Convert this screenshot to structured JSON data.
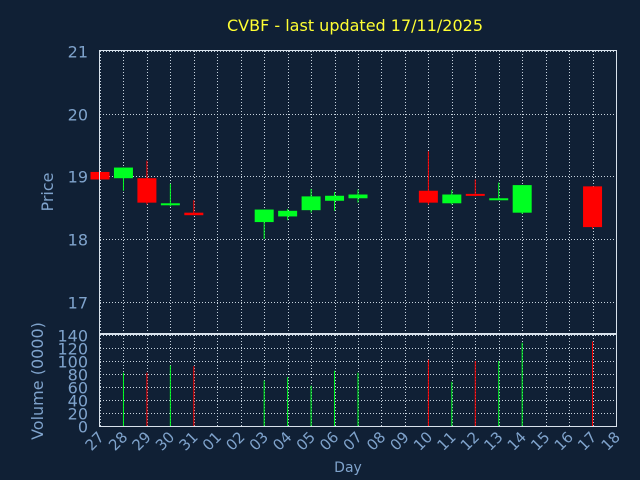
{
  "chart_data": {
    "type": "candlestick",
    "title": "CVBF - last updated 17/11/2025",
    "xlabel": "Day",
    "price_panel": {
      "ylabel": "Price",
      "ylim": [
        16.5,
        21
      ],
      "yticks": [
        17,
        18,
        19,
        20,
        21
      ]
    },
    "volume_panel": {
      "ylabel": "Volume (0000)",
      "ylim": [
        0,
        140
      ],
      "yticks": [
        0,
        20,
        40,
        60,
        80,
        100,
        120,
        140
      ]
    },
    "x_ticks": [
      "27",
      "28",
      "29",
      "30",
      "31",
      "01",
      "02",
      "03",
      "04",
      "05",
      "06",
      "07",
      "08",
      "09",
      "10",
      "11",
      "12",
      "13",
      "14",
      "15",
      "16",
      "17",
      "18"
    ],
    "grid": true,
    "candles": [
      {
        "day": "27",
        "open": 19.07,
        "high": 19.07,
        "low": 18.95,
        "close": 18.95,
        "volume": 0
      },
      {
        "day": "28",
        "open": 18.97,
        "high": 19.14,
        "low": 18.77,
        "close": 19.14,
        "volume": 82
      },
      {
        "day": "29",
        "open": 18.97,
        "high": 19.25,
        "low": 18.55,
        "close": 18.58,
        "volume": 82
      },
      {
        "day": "30",
        "open": 18.55,
        "high": 18.88,
        "low": 18.52,
        "close": 18.57,
        "volume": 93
      },
      {
        "day": "31",
        "open": 18.42,
        "high": 18.62,
        "low": 18.38,
        "close": 18.38,
        "volume": 92
      },
      {
        "day": "03",
        "open": 18.27,
        "high": 18.47,
        "low": 18.0,
        "close": 18.47,
        "volume": 70
      },
      {
        "day": "04",
        "open": 18.36,
        "high": 18.48,
        "low": 18.3,
        "close": 18.45,
        "volume": 75
      },
      {
        "day": "05",
        "open": 18.46,
        "high": 18.8,
        "low": 18.42,
        "close": 18.68,
        "volume": 62
      },
      {
        "day": "06",
        "open": 18.61,
        "high": 18.75,
        "low": 18.45,
        "close": 18.69,
        "volume": 85
      },
      {
        "day": "07",
        "open": 18.65,
        "high": 18.79,
        "low": 18.58,
        "close": 18.71,
        "volume": 82
      },
      {
        "day": "10",
        "open": 18.77,
        "high": 19.4,
        "low": 18.55,
        "close": 18.58,
        "volume": 102
      },
      {
        "day": "11",
        "open": 18.57,
        "high": 18.78,
        "low": 18.55,
        "close": 18.71,
        "volume": 68
      },
      {
        "day": "12",
        "open": 18.72,
        "high": 18.95,
        "low": 18.68,
        "close": 18.69,
        "volume": 100
      },
      {
        "day": "13",
        "open": 18.63,
        "high": 18.9,
        "low": 18.62,
        "close": 18.65,
        "volume": 100
      },
      {
        "day": "14",
        "open": 18.42,
        "high": 18.86,
        "low": 18.4,
        "close": 18.86,
        "volume": 128
      },
      {
        "day": "17",
        "open": 18.84,
        "high": 18.84,
        "low": 18.16,
        "close": 18.19,
        "volume": 130
      }
    ]
  },
  "colors": {
    "background": "#102035",
    "title": "#ffff33",
    "axis_text": "#7fa3cc",
    "frame": "#d8e2ec",
    "grid": "#c7d3de",
    "up": "#00ff22",
    "down": "#ff0000"
  }
}
